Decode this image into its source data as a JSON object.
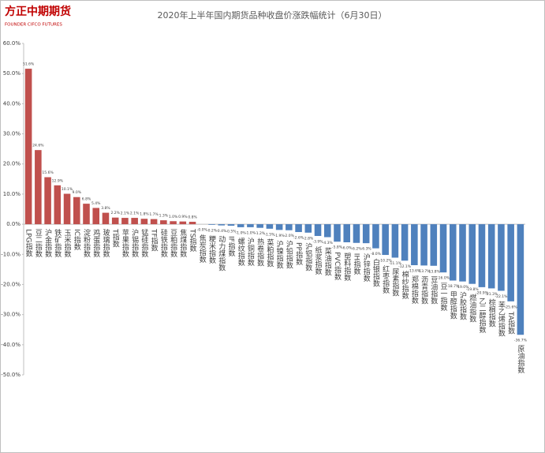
{
  "logo": {
    "name": "方正中期期货",
    "english": "FOUNDER CIFCO FUTURES"
  },
  "chart_data": {
    "type": "bar",
    "title": "2020年上半年国内期货品种收盘价涨跌幅统计（6月30日）",
    "categories": [
      "LPG指数",
      "豆二指数",
      "沪金指数",
      "铁矿指数",
      "玉米指数",
      "IC指数",
      "淀粉指数",
      "鸡蛋指数",
      "玻璃指数",
      "T指数",
      "苹果指数",
      "沪锡指数",
      "锰硅指数",
      "TF指数",
      "硅铁指数",
      "豆粕指数",
      "焦煤指数",
      "TS指数",
      "焦炭指数",
      "粳米指数",
      "动力煤指数",
      "IF指数",
      "螺纹指数",
      "沪铜指数",
      "热卷指数",
      "菜粕指数",
      "沪镍指数",
      "沪铅指数",
      "PP指数",
      "沪铝指数",
      "纸浆指数",
      "菜油指数",
      "PVC指数",
      "塑料指数",
      "IH指数",
      "沪锌指数",
      "白银指数",
      "红枣指数",
      "尿素指数",
      "棉纱指数",
      "郑棉指数",
      "沥青指数",
      "豆油指数",
      "豆一指数",
      "甲醇指数",
      "沪胶指数",
      "燃油指数",
      "乙二醇指数",
      "棕榈指数",
      "苯乙烯指数",
      "TA指数",
      "原油指数"
    ],
    "values": [
      51.6,
      24.6,
      15.6,
      12.9,
      10.1,
      9.0,
      6.8,
      5.4,
      3.8,
      2.2,
      2.1,
      2.1,
      1.8,
      1.7,
      1.3,
      1.0,
      0.9,
      0.8,
      -0.0,
      -0.2,
      -0.4,
      -0.5,
      -1.0,
      -1.0,
      -1.2,
      -1.5,
      -1.9,
      -2.0,
      -2.6,
      -2.8,
      -3.9,
      -4.3,
      -5.8,
      -6.0,
      -6.2,
      -6.3,
      -8.0,
      -10.2,
      -11.1,
      -12.1,
      -13.6,
      -13.7,
      -13.8,
      -16.0,
      -18.7,
      -19.0,
      -19.8,
      -20.9,
      -21.3,
      -22.1,
      -25.6,
      -36.7
    ],
    "value_labels": [
      "51.6%",
      "24.6%",
      "15.6%",
      "12.9%",
      "10.1%",
      "9.0%",
      "6.8%",
      "5.4%",
      "3.8%",
      "2.2%",
      "2.1%",
      "2.1%",
      "1.8%",
      "1.7%",
      "1.3%",
      "1.0%",
      "0.9%",
      "0.8%",
      "-0.0%",
      "-0.2%",
      "-0.4%",
      "-0.5%",
      "-1.0%",
      "-1.0%",
      "-1.2%",
      "-1.5%",
      "-1.9%",
      "-2.0%",
      "-2.6%",
      "-2.8%",
      "-3.9%",
      "-4.3%",
      "-5.8%",
      "-6.0%",
      "-6.2%",
      "-6.3%",
      "-8.0%",
      "-10.2%",
      "-11.1%",
      "-12.1%",
      "-13.6%",
      "-13.7%",
      "-13.8%",
      "-16.0%",
      "-18.7%",
      "-19.0%",
      "-19.8%",
      "-20.9%",
      "-21.3%",
      "-22.1%",
      "-25.6%",
      "-36.7%"
    ],
    "color_positive": "#c0504d",
    "color_negative": "#4f81bd",
    "ylim": [
      -50,
      60
    ],
    "yticks": [
      {
        "value": 60,
        "label": "60.0%"
      },
      {
        "value": 50,
        "label": "50.0%"
      },
      {
        "value": 40,
        "label": "40.0%"
      },
      {
        "value": 30,
        "label": "30.0%"
      },
      {
        "value": 20,
        "label": "20.0%"
      },
      {
        "value": 10,
        "label": "10.0%"
      },
      {
        "value": 0,
        "label": "0.0%"
      },
      {
        "value": -10,
        "label": "-10.0%"
      },
      {
        "value": -20,
        "label": "-20.0%"
      },
      {
        "value": -30,
        "label": "-30.0%"
      },
      {
        "value": -40,
        "label": "-40.0%"
      },
      {
        "value": -50,
        "label": "-50.0%"
      }
    ]
  }
}
